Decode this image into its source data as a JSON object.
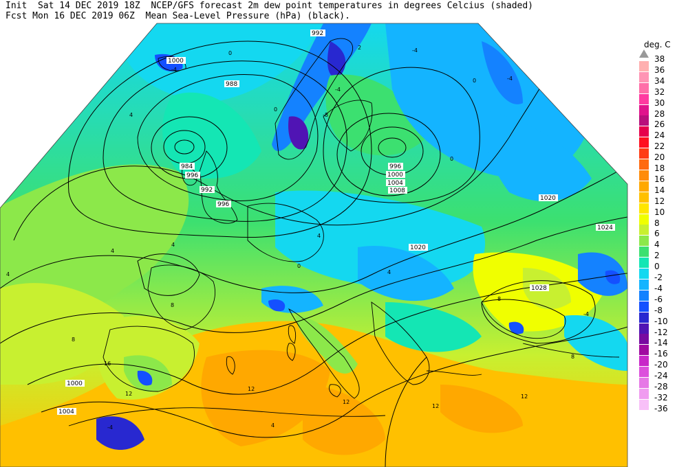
{
  "header": {
    "line1": "Init  Sat 14 DEC 2019 18Z  NCEP/GFS forecast 2m dew point temperatures in degrees Celcius (shaded)",
    "line2": "Fcst Mon 16 DEC 2019 06Z  Mean Sea-Level Pressure (hPa) (black)."
  },
  "legend": {
    "title": "deg. C",
    "levels": [
      {
        "label": "38",
        "color": "#a0a0a0"
      },
      {
        "label": "36",
        "color": "#ffb0b0"
      },
      {
        "label": "34",
        "color": "#ff94b4"
      },
      {
        "label": "32",
        "color": "#ff6ea8"
      },
      {
        "label": "30",
        "color": "#ff3aa0"
      },
      {
        "label": "28",
        "color": "#e0148c"
      },
      {
        "label": "26",
        "color": "#b8107c"
      },
      {
        "label": "24",
        "color": "#e6004c"
      },
      {
        "label": "22",
        "color": "#ff1020"
      },
      {
        "label": "20",
        "color": "#ff3c14"
      },
      {
        "label": "18",
        "color": "#ff6a10"
      },
      {
        "label": "16",
        "color": "#ff8c0a"
      },
      {
        "label": "14",
        "color": "#ffa800"
      },
      {
        "label": "12",
        "color": "#ffc000"
      },
      {
        "label": "10",
        "color": "#ffe600"
      },
      {
        "label": "8",
        "color": "#f0ff00"
      },
      {
        "label": "6",
        "color": "#c8f030"
      },
      {
        "label": "4",
        "color": "#8ce84a"
      },
      {
        "label": "2",
        "color": "#3ce070"
      },
      {
        "label": "0",
        "color": "#14e6b4"
      },
      {
        "label": "-2",
        "color": "#14d8f0"
      },
      {
        "label": "-4",
        "color": "#14b4ff"
      },
      {
        "label": "-6",
        "color": "#1482ff"
      },
      {
        "label": "-8",
        "color": "#1450ff"
      },
      {
        "label": "-10",
        "color": "#2828d0"
      },
      {
        "label": "-12",
        "color": "#5014b4"
      },
      {
        "label": "-14",
        "color": "#780aa0"
      },
      {
        "label": "-16",
        "color": "#a00aa0"
      },
      {
        "label": "-20",
        "color": "#c828c8"
      },
      {
        "label": "-24",
        "color": "#dc50dc"
      },
      {
        "label": "-28",
        "color": "#e678e6"
      },
      {
        "label": "-32",
        "color": "#f09cf0"
      },
      {
        "label": "-36",
        "color": "#f8c0f8"
      }
    ]
  },
  "isobar_labels": [
    "992",
    "1000",
    "988",
    "984",
    "996",
    "992",
    "996",
    "996",
    "1000",
    "1004",
    "1008",
    "1020",
    "1020",
    "1024",
    "1028",
    "1000",
    "1004"
  ],
  "dewpoint_labels": [
    "-4",
    "-4",
    "-4",
    "-8",
    "0",
    "0",
    "0",
    "0",
    "4",
    "4",
    "4",
    "4",
    "4",
    "8",
    "8",
    "8",
    "12",
    "12",
    "12",
    "12",
    "16",
    "4",
    "-4",
    "-4",
    "0",
    "2",
    "4",
    "8",
    "-4",
    "12",
    "12"
  ]
}
